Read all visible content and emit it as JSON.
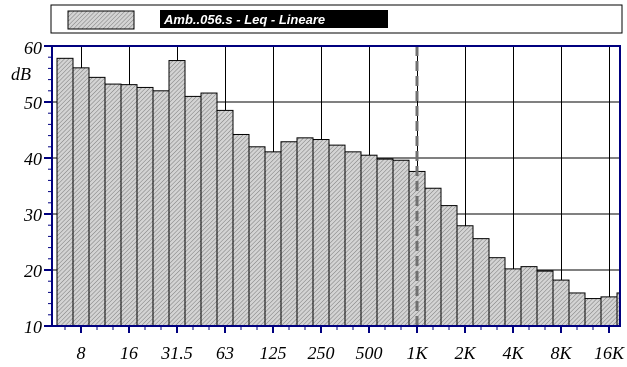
{
  "chart_data": {
    "type": "bar",
    "legend": {
      "label": "Amb..056.s - Leq - Lineare",
      "placement": "top"
    },
    "ylabel": "dB",
    "ylim": [
      10,
      60
    ],
    "y_ticks": [
      "10",
      "20",
      "30",
      "40",
      "50",
      "60"
    ],
    "x_tick_labels": [
      "8",
      "16",
      "31.5",
      "63",
      "125",
      "250",
      "500",
      "1K",
      "2K",
      "4K",
      "8K",
      "16K"
    ],
    "categories": [
      "6.3",
      "8",
      "10",
      "12.5",
      "16",
      "20",
      "25",
      "31.5",
      "40",
      "50",
      "63",
      "80",
      "100",
      "125",
      "160",
      "200",
      "250",
      "315",
      "400",
      "500",
      "630",
      "800",
      "1K",
      "1.25K",
      "1.6K",
      "2K",
      "2.5K",
      "3.15K",
      "4K",
      "5K",
      "6.3K",
      "8K",
      "10K",
      "12.5K",
      "16K",
      "20K"
    ],
    "values": [
      57.8,
      56.1,
      54.4,
      53.2,
      53.1,
      52.6,
      52.0,
      57.4,
      51.0,
      51.6,
      48.5,
      44.2,
      42.0,
      41.1,
      42.9,
      43.6,
      43.3,
      42.3,
      41.1,
      40.5,
      39.8,
      39.6,
      37.6,
      34.6,
      31.5,
      27.9,
      25.6,
      22.2,
      20.2,
      20.6,
      19.8,
      18.2,
      15.9,
      14.9,
      15.2,
      15.9
    ],
    "marker": {
      "value": "1K"
    },
    "grid": true,
    "colors": {
      "bar_fill": "#c8c8c8",
      "bar_hatch": "#8a8a8a",
      "frame": "#00007f",
      "grid": "#000000",
      "legend_bg": "#000000"
    }
  }
}
